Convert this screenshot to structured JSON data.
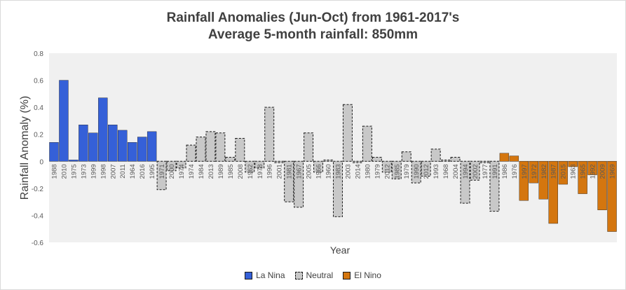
{
  "chart_data": {
    "type": "bar",
    "title_line1": "Rainfall Anomalies (Jun-Oct) from 1961-2017's",
    "title_line2": "Average 5-month rainfall: 850mm",
    "xlabel": "Year",
    "ylabel": "Rainfall Anomaly (%)",
    "ylim": [
      -0.6,
      0.8
    ],
    "yticks": [
      "0.8",
      "0.6",
      "0.4",
      "0.2",
      "0",
      "-0.2",
      "-0.4",
      "-0.6"
    ],
    "colors": {
      "la_nina": "#3560d8",
      "neutral": "#c8c8c8",
      "el_nino": "#d4760f",
      "plot_bg": "#f0f0f0"
    },
    "legend": [
      {
        "key": "la_nina",
        "label": "La Nina"
      },
      {
        "key": "neutral",
        "label": "Neutral"
      },
      {
        "key": "el_nino",
        "label": "El Nino"
      }
    ],
    "bars": [
      {
        "year": "1988",
        "value": 0.14,
        "group": "la_nina"
      },
      {
        "year": "2010",
        "value": 0.6,
        "group": "la_nina"
      },
      {
        "year": "1975",
        "value": 0.01,
        "group": "la_nina"
      },
      {
        "year": "1973",
        "value": 0.27,
        "group": "la_nina"
      },
      {
        "year": "1999",
        "value": 0.21,
        "group": "la_nina"
      },
      {
        "year": "1998",
        "value": 0.47,
        "group": "la_nina"
      },
      {
        "year": "2007",
        "value": 0.27,
        "group": "la_nina"
      },
      {
        "year": "2011",
        "value": 0.23,
        "group": "la_nina"
      },
      {
        "year": "1964",
        "value": 0.14,
        "group": "la_nina"
      },
      {
        "year": "2016",
        "value": 0.18,
        "group": "la_nina"
      },
      {
        "year": "1995",
        "value": 0.22,
        "group": "la_nina"
      },
      {
        "year": "1971",
        "value": -0.21,
        "group": "neutral"
      },
      {
        "year": "2000",
        "value": -0.07,
        "group": "neutral"
      },
      {
        "year": "1974",
        "value": -0.05,
        "group": "neutral"
      },
      {
        "year": "1974",
        "value": 0.12,
        "group": "neutral"
      },
      {
        "year": "1984",
        "value": 0.18,
        "group": "neutral"
      },
      {
        "year": "2013",
        "value": 0.22,
        "group": "neutral"
      },
      {
        "year": "1989",
        "value": 0.21,
        "group": "neutral"
      },
      {
        "year": "1985",
        "value": 0.03,
        "group": "neutral"
      },
      {
        "year": "2008",
        "value": 0.17,
        "group": "neutral"
      },
      {
        "year": "1962",
        "value": -0.08,
        "group": "neutral"
      },
      {
        "year": "1978",
        "value": -0.05,
        "group": "neutral"
      },
      {
        "year": "1996",
        "value": 0.4,
        "group": "neutral"
      },
      {
        "year": "2001",
        "value": -0.01,
        "group": "neutral"
      },
      {
        "year": "1981",
        "value": -0.3,
        "group": "neutral"
      },
      {
        "year": "1967",
        "value": -0.34,
        "group": "neutral"
      },
      {
        "year": "2005",
        "value": 0.21,
        "group": "neutral"
      },
      {
        "year": "1966",
        "value": -0.08,
        "group": "neutral"
      },
      {
        "year": "1960",
        "value": 0.01,
        "group": "neutral"
      },
      {
        "year": "1983",
        "value": -0.41,
        "group": "neutral"
      },
      {
        "year": "2003",
        "value": 0.42,
        "group": "neutral"
      },
      {
        "year": "2014",
        "value": -0.01,
        "group": "neutral"
      },
      {
        "year": "1980",
        "value": 0.26,
        "group": "neutral"
      },
      {
        "year": "1979",
        "value": 0.03,
        "group": "neutral"
      },
      {
        "year": "2012",
        "value": -0.08,
        "group": "neutral"
      },
      {
        "year": "1985",
        "value": -0.13,
        "group": "neutral"
      },
      {
        "year": "1979",
        "value": 0.07,
        "group": "neutral"
      },
      {
        "year": "1990",
        "value": -0.16,
        "group": "neutral"
      },
      {
        "year": "2012",
        "value": -0.11,
        "group": "neutral"
      },
      {
        "year": "1993",
        "value": 0.09,
        "group": "neutral"
      },
      {
        "year": "1968",
        "value": 0.01,
        "group": "neutral"
      },
      {
        "year": "2004",
        "value": 0.03,
        "group": "neutral"
      },
      {
        "year": "1994",
        "value": -0.31,
        "group": "neutral"
      },
      {
        "year": "2002",
        "value": -0.14,
        "group": "neutral"
      },
      {
        "year": "1977",
        "value": -0.01,
        "group": "neutral"
      },
      {
        "year": "1991",
        "value": -0.37,
        "group": "neutral"
      },
      {
        "year": "1986",
        "value": 0.06,
        "group": "el_nino"
      },
      {
        "year": "1976",
        "value": 0.04,
        "group": "el_nino"
      },
      {
        "year": "1997",
        "value": -0.29,
        "group": "el_nino"
      },
      {
        "year": "1972",
        "value": -0.16,
        "group": "el_nino"
      },
      {
        "year": "1982",
        "value": -0.28,
        "group": "el_nino"
      },
      {
        "year": "1987",
        "value": -0.46,
        "group": "el_nino"
      },
      {
        "year": "2015",
        "value": -0.17,
        "group": "el_nino"
      },
      {
        "year": "1963",
        "value": -0.04,
        "group": "el_nino"
      },
      {
        "year": "1965",
        "value": -0.24,
        "group": "el_nino"
      },
      {
        "year": "1992",
        "value": -0.1,
        "group": "el_nino"
      },
      {
        "year": "2009",
        "value": -0.36,
        "group": "el_nino"
      },
      {
        "year": "1969",
        "value": -0.52,
        "group": "el_nino"
      }
    ]
  }
}
